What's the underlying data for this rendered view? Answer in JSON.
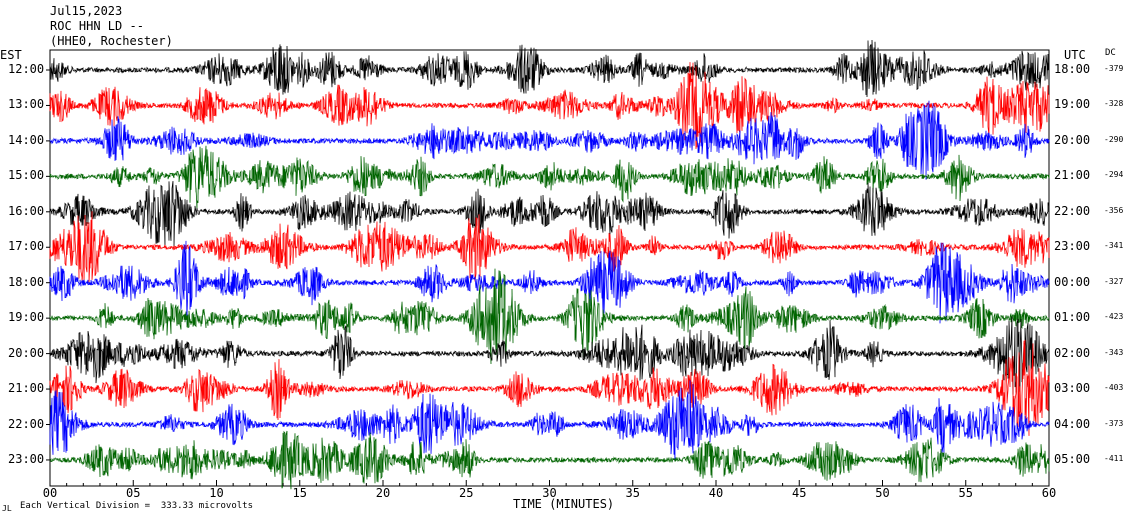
{
  "header": {
    "date": "Jul15,2023",
    "station": "ROC HHN LD --",
    "location": "(HHE0, Rochester)"
  },
  "labels": {
    "left_zone": "EST",
    "right_zone": "UTC",
    "dc_header": "DC",
    "footer_mark": "JL",
    "footer_note": "Each Vertical Division =  333.33 microvolts"
  },
  "chart_data": {
    "type": "line",
    "title": "",
    "xlabel": "TIME (MINUTES)",
    "x_ticks": [
      "00",
      "05",
      "10",
      "15",
      "20",
      "25",
      "30",
      "35",
      "40",
      "45",
      "50",
      "55",
      "60"
    ],
    "xlim": [
      0,
      60
    ],
    "trace_colors": [
      "#000000",
      "#ff0000",
      "#0000ff",
      "#006400"
    ],
    "rows": [
      {
        "est": "12:00",
        "utc": "18:00",
        "dc": "-379",
        "color": "#000000"
      },
      {
        "est": "13:00",
        "utc": "19:00",
        "dc": "-328",
        "color": "#ff0000"
      },
      {
        "est": "14:00",
        "utc": "20:00",
        "dc": "-290",
        "color": "#0000ff"
      },
      {
        "est": "15:00",
        "utc": "21:00",
        "dc": "-294",
        "color": "#006400"
      },
      {
        "est": "16:00",
        "utc": "22:00",
        "dc": "-356",
        "color": "#000000"
      },
      {
        "est": "17:00",
        "utc": "23:00",
        "dc": "-341",
        "color": "#ff0000"
      },
      {
        "est": "18:00",
        "utc": "00:00",
        "dc": "-327",
        "color": "#0000ff"
      },
      {
        "est": "19:00",
        "utc": "01:00",
        "dc": "-423",
        "color": "#006400"
      },
      {
        "est": "20:00",
        "utc": "02:00",
        "dc": "-343",
        "color": "#000000"
      },
      {
        "est": "21:00",
        "utc": "03:00",
        "dc": "-403",
        "color": "#ff0000"
      },
      {
        "est": "22:00",
        "utc": "04:00",
        "dc": "-373",
        "color": "#0000ff"
      },
      {
        "est": "23:00",
        "utc": "05:00",
        "dc": "-411",
        "color": "#006400"
      }
    ]
  }
}
